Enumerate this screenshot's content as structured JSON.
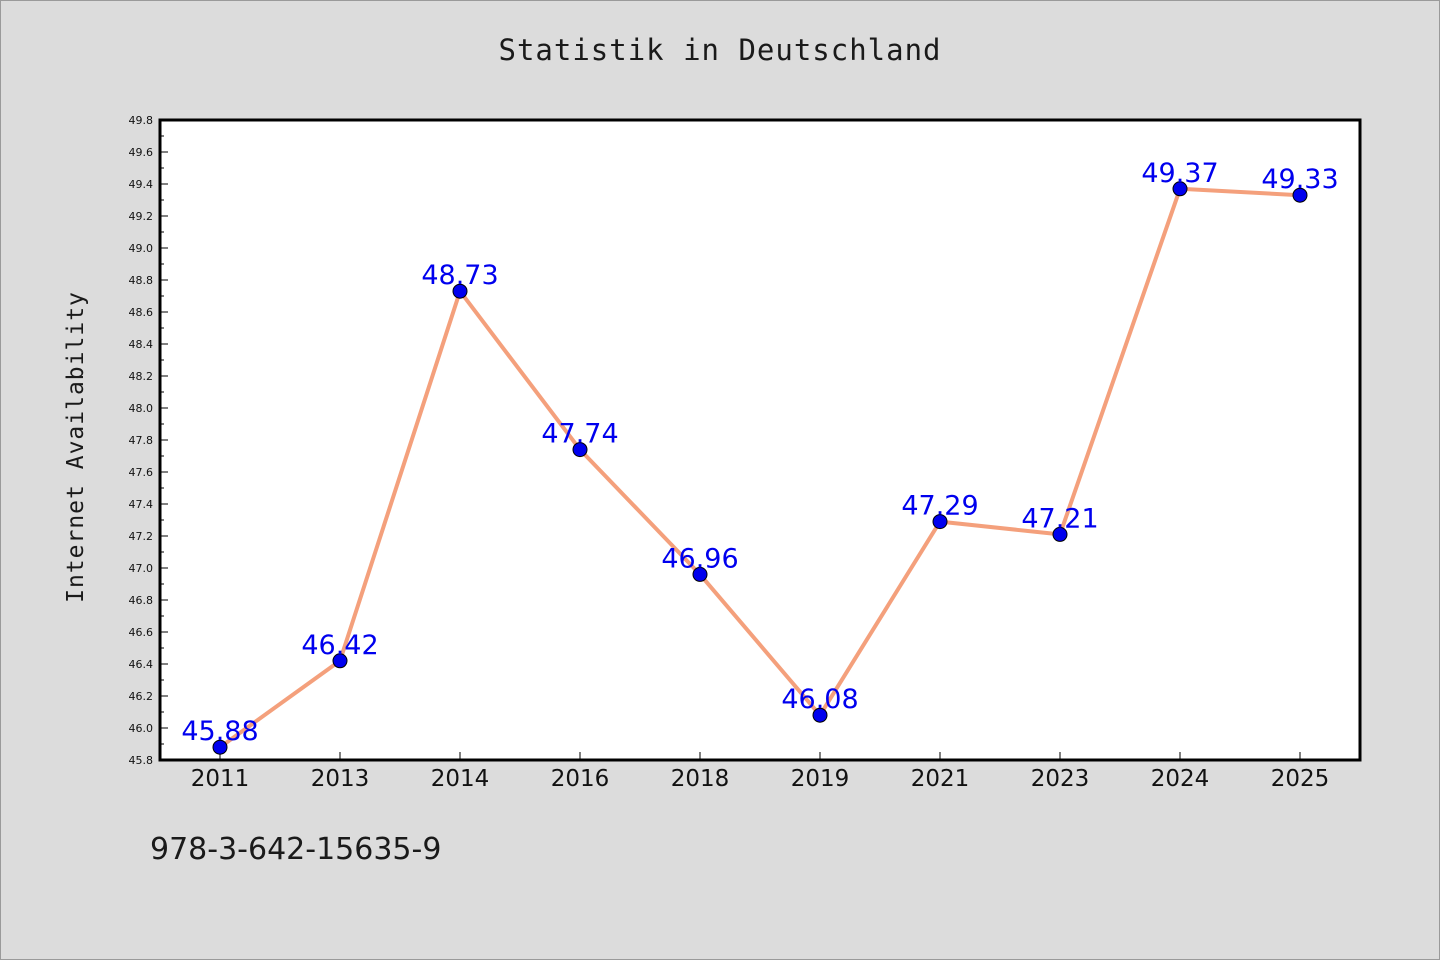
{
  "chart_data": {
    "type": "line",
    "title": "Statistik in Deutschland",
    "xlabel": "",
    "ylabel": "Internet Availability",
    "categories": [
      "2011",
      "2013",
      "2014",
      "2016",
      "2018",
      "2019",
      "2021",
      "2023",
      "2024",
      "2025"
    ],
    "series": [
      {
        "values": [
          45.88,
          46.42,
          48.73,
          47.74,
          46.96,
          46.08,
          47.29,
          47.21,
          49.37,
          49.33
        ],
        "data_labels": [
          "45.88",
          "46.42",
          "48.73",
          "47.74",
          "46.96",
          "46.08",
          "47.29",
          "47.21",
          "49.37",
          "49.33"
        ],
        "line_color": "#f4a07c",
        "marker_color": "#0000ee",
        "label_color": "#0000ee"
      }
    ],
    "ylim": [
      45.8,
      49.8
    ],
    "y_ticks": [
      "45.8",
      "46.0",
      "46.2",
      "46.4",
      "46.6",
      "46.8",
      "47.0",
      "47.2",
      "47.4",
      "47.6",
      "47.8",
      "48.0",
      "48.2",
      "48.4",
      "48.6",
      "48.8",
      "49.0",
      "49.2",
      "49.4",
      "49.6",
      "49.8"
    ],
    "grid": false,
    "legend": "none",
    "background": "#dcdcdc",
    "plot_background": "#ffffff"
  },
  "footnote": "978-3-642-15635-9"
}
